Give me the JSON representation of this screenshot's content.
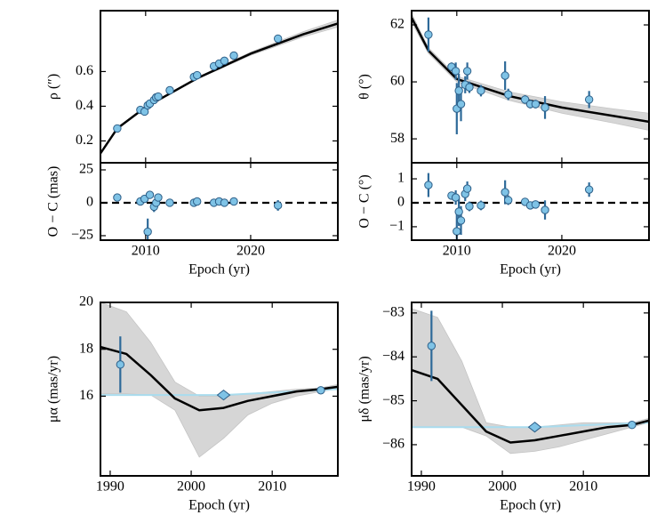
{
  "chart_data": [
    {
      "type": "scatter",
      "ylabel": "ρ (″)",
      "x": [
        2007.3,
        2009.5,
        2009.9,
        2010.2,
        2010.4,
        2010.8,
        2011.0,
        2011.2,
        2012.3,
        2014.6,
        2014.9,
        2016.5,
        2017.0,
        2017.5,
        2018.4,
        2022.6
      ],
      "values": [
        0.272,
        0.379,
        0.369,
        0.405,
        0.415,
        0.436,
        0.451,
        0.456,
        0.492,
        0.569,
        0.579,
        0.631,
        0.646,
        0.662,
        0.692,
        0.79
      ],
      "errors": [
        0.004,
        0.004,
        0.004,
        0.004,
        0.004,
        0.004,
        0.004,
        0.004,
        0.004,
        0.004,
        0.004,
        0.004,
        0.004,
        0.004,
        0.004,
        0.004
      ],
      "markers": [
        "o",
        "o",
        "o",
        "o",
        "o",
        "o",
        "o",
        "o",
        "o",
        "o",
        "o",
        "o",
        "o",
        "o",
        "o",
        "o"
      ],
      "line": {
        "x": [
          2005.7,
          2007.3,
          2010,
          2015,
          2020,
          2025,
          2028.3
        ],
        "values": [
          0.128,
          0.272,
          0.395,
          0.564,
          0.703,
          0.815,
          0.877
        ],
        "upper": [
          0.133,
          0.276,
          0.399,
          0.569,
          0.712,
          0.83,
          0.897
        ],
        "lower": [
          0.123,
          0.268,
          0.391,
          0.559,
          0.694,
          0.8,
          0.857
        ]
      },
      "xlim": [
        2005.7,
        2028.3
      ],
      "xticks": [
        2010,
        2020
      ],
      "ylim": [
        0.074,
        0.951
      ],
      "yticks": [
        0.2,
        0.4,
        0.6
      ]
    },
    {
      "type": "scatter",
      "ylabel": "O − C (mas)",
      "xlabel": "Epoch (yr)",
      "x": [
        2007.3,
        2009.5,
        2009.9,
        2010.2,
        2010.4,
        2010.8,
        2011.0,
        2011.2,
        2012.3,
        2014.6,
        2014.9,
        2016.5,
        2017.0,
        2017.5,
        2018.4,
        2022.6
      ],
      "values": [
        4,
        1,
        3,
        -22,
        6,
        -3,
        0,
        4,
        0,
        0,
        1,
        0,
        1,
        0,
        1,
        -2
      ],
      "errors": [
        2,
        2,
        3,
        10,
        3,
        4,
        3,
        3,
        2,
        2,
        2,
        2,
        2,
        2,
        2,
        4
      ],
      "markers": [
        "o",
        "o",
        "o",
        "o",
        "o",
        "o",
        "o",
        "o",
        "o",
        "o",
        "o",
        "o",
        "o",
        "o",
        "o",
        "o"
      ],
      "hline": 0,
      "xlim": [
        2005.7,
        2028.3
      ],
      "xticks": [
        2010,
        2020
      ],
      "ylim": [
        -28.4,
        30.4
      ],
      "yticks": [
        {
          "value": -25,
          "label": "−25"
        },
        0,
        25
      ]
    },
    {
      "type": "scatter",
      "ylabel": "θ (°)",
      "x": [
        2007.3,
        2009.5,
        2009.9,
        2010.0,
        2010.2,
        2010.4,
        2010.8,
        2011.0,
        2011.2,
        2012.3,
        2014.6,
        2014.9,
        2016.5,
        2017.0,
        2017.5,
        2018.4,
        2022.6
      ],
      "values": [
        61.66,
        60.53,
        60.38,
        59.06,
        59.69,
        59.22,
        59.9,
        60.38,
        59.81,
        59.69,
        60.22,
        59.56,
        59.38,
        59.22,
        59.22,
        59.1,
        59.38
      ],
      "errors": [
        0.6,
        0.15,
        0.3,
        0.9,
        0.6,
        0.6,
        0.3,
        0.3,
        0.2,
        0.2,
        0.5,
        0.2,
        0.15,
        0.15,
        0.15,
        0.4,
        0.3
      ],
      "markers": [
        "o",
        "o",
        "o",
        "o",
        "o",
        "o",
        "o",
        "o",
        "o",
        "o",
        "o",
        "o",
        "o",
        "o",
        "o",
        "o",
        "o"
      ],
      "line": {
        "x": [
          2005.7,
          2007.3,
          2010,
          2015,
          2020,
          2025,
          2028.3
        ],
        "values": [
          62.25,
          61.1,
          60.1,
          59.5,
          59.1,
          58.8,
          58.6
        ],
        "upper": [
          62.4,
          61.2,
          60.2,
          59.65,
          59.3,
          59.05,
          58.9
        ],
        "lower": [
          62.1,
          61.0,
          60.0,
          59.35,
          58.9,
          58.55,
          58.3
        ]
      },
      "xlim": [
        2005.7,
        2028.3
      ],
      "xticks": [
        2010,
        2020
      ],
      "ylim": [
        57.16,
        62.5
      ],
      "yticks": [
        58,
        60,
        62
      ]
    },
    {
      "type": "scatter",
      "ylabel": "O − C (°)",
      "xlabel": "Epoch (yr)",
      "x": [
        2007.3,
        2009.5,
        2009.9,
        2010.0,
        2010.2,
        2010.4,
        2010.8,
        2011.0,
        2011.2,
        2012.3,
        2014.6,
        2014.9,
        2016.5,
        2017.0,
        2017.5,
        2018.4,
        2022.6
      ],
      "values": [
        0.74,
        0.3,
        0.22,
        -1.19,
        -0.37,
        -0.74,
        0.37,
        0.59,
        -0.15,
        -0.11,
        0.44,
        0.11,
        0.04,
        -0.11,
        -0.07,
        -0.3,
        0.55
      ],
      "errors": [
        0.5,
        0.15,
        0.3,
        0.9,
        0.6,
        0.6,
        0.3,
        0.3,
        0.2,
        0.2,
        0.5,
        0.2,
        0.15,
        0.15,
        0.15,
        0.4,
        0.3
      ],
      "markers": [
        "o",
        "o",
        "o",
        "o",
        "o",
        "o",
        "o",
        "o",
        "o",
        "o",
        "o",
        "o",
        "o",
        "o",
        "o",
        "o",
        "o"
      ],
      "hline": 0,
      "xlim": [
        2005.7,
        2028.3
      ],
      "xticks": [
        2010,
        2020
      ],
      "ylim": [
        -1.56,
        1.67
      ],
      "yticks": [
        {
          "value": -1,
          "label": "−1"
        },
        0,
        1
      ]
    },
    {
      "type": "scatter",
      "ylabel": "μα (mas/yr)",
      "xlabel": "Epoch (yr)",
      "x": [
        1991.25,
        2004.0,
        2016.0
      ],
      "values": [
        17.35,
        16.05,
        16.25
      ],
      "errors": [
        1.2,
        0.03,
        0.03
      ],
      "markers": [
        "o",
        "D",
        "o"
      ],
      "line": {
        "x": [
          1988.8,
          1992,
          1995,
          1998,
          2001,
          2004,
          2007,
          2010,
          2013,
          2016,
          2018.1
        ],
        "values": [
          18.1,
          17.8,
          16.9,
          15.9,
          15.4,
          15.5,
          15.8,
          16.0,
          16.2,
          16.3,
          16.4
        ],
        "upper": [
          20,
          19.6,
          18.3,
          16.6,
          16.0,
          16.0,
          16.1,
          16.2,
          16.3,
          16.35,
          16.5
        ],
        "lower": [
          16.1,
          16.1,
          16.05,
          15.4,
          13.4,
          14.2,
          15.2,
          15.7,
          16.0,
          16.2,
          16.3
        ]
      },
      "trend": {
        "x": [
          1988.8,
          2004.0,
          2018.1
        ],
        "values": [
          16.05,
          16.05,
          16.3
        ]
      },
      "xlim": [
        1988.8,
        2018.1
      ],
      "xticks": [
        1990,
        2000,
        2010
      ],
      "ylim": [
        12.6,
        20
      ],
      "yticks": [
        16,
        18,
        20
      ]
    },
    {
      "type": "scatter",
      "ylabel": "μδ (mas/yr)",
      "xlabel": "Epoch (yr)",
      "x": [
        1991.25,
        2004.0,
        2016.0
      ],
      "values": [
        -83.75,
        -85.6,
        -85.55
      ],
      "errors": [
        0.8,
        0.02,
        0.02
      ],
      "markers": [
        "o",
        "D",
        "o"
      ],
      "line": {
        "x": [
          1988.8,
          1992,
          1995,
          1998,
          2001,
          2004,
          2007,
          2010,
          2013,
          2016,
          2018.1
        ],
        "values": [
          -84.3,
          -84.5,
          -85.1,
          -85.7,
          -85.95,
          -85.9,
          -85.8,
          -85.7,
          -85.6,
          -85.55,
          -85.45
        ],
        "upper": [
          -82.9,
          -83.1,
          -84.1,
          -85.5,
          -85.6,
          -85.6,
          -85.55,
          -85.5,
          -85.5,
          -85.5,
          -85.4
        ],
        "lower": [
          -85.6,
          -85.6,
          -85.6,
          -85.8,
          -86.2,
          -86.15,
          -86.05,
          -85.9,
          -85.75,
          -85.6,
          -85.5
        ]
      },
      "trend": {
        "x": [
          1988.8,
          2004.0,
          2018.1
        ],
        "values": [
          -85.6,
          -85.6,
          -85.5
        ]
      },
      "xlim": [
        1988.8,
        2018.1
      ],
      "xticks": [
        1990,
        2000,
        2010
      ],
      "ylim": [
        -86.71,
        -82.76
      ],
      "yticks": [
        {
          "value": -86,
          "label": "−86"
        },
        {
          "value": -85,
          "label": "−85"
        },
        {
          "value": -84,
          "label": "−84"
        },
        {
          "value": -83,
          "label": "−83"
        }
      ]
    }
  ]
}
